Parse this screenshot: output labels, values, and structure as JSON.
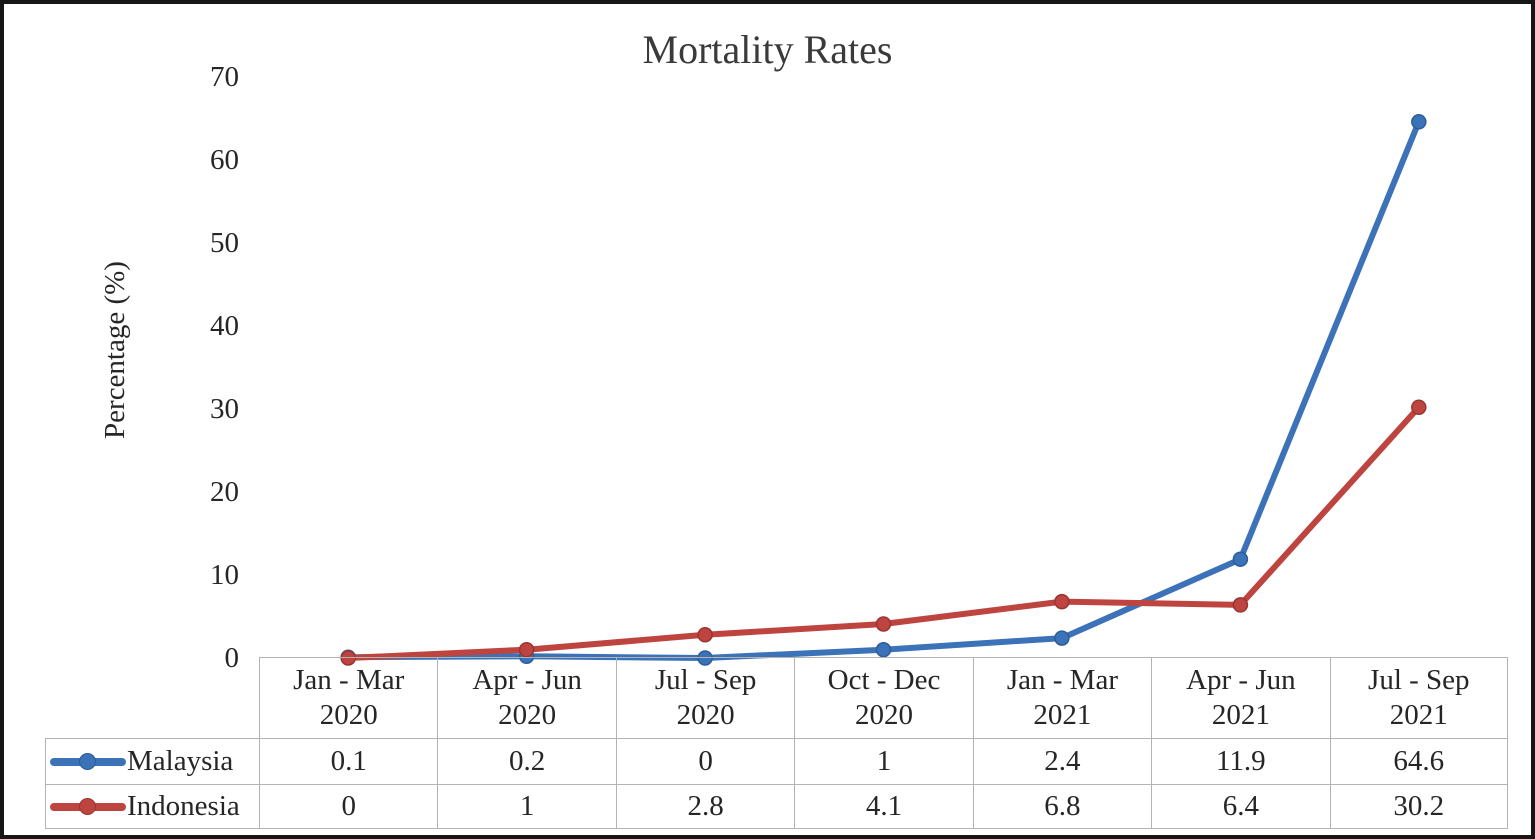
{
  "chart_data": {
    "type": "line",
    "title": "Mortality Rates",
    "xlabel": "",
    "ylabel": "Percentage (%)",
    "categories": [
      "Jan - Mar 2020",
      "Apr - Jun 2020",
      "Jul - Sep 2020",
      "Oct - Dec 2020",
      "Jan - Mar 2021",
      "Apr - Jun 2021",
      "Jul - Sep 2021"
    ],
    "series": [
      {
        "name": "Malaysia",
        "color": "#3b72b8",
        "marker_edge": "#2d5d99",
        "values": [
          0.1,
          0.2,
          0,
          1,
          2.4,
          11.9,
          64.6
        ]
      },
      {
        "name": "Indonesia",
        "color": "#be4440",
        "marker_edge": "#993432",
        "values": [
          0,
          1,
          2.8,
          4.1,
          6.8,
          6.4,
          30.2
        ]
      }
    ],
    "ylim": [
      0,
      70
    ],
    "yticks": [
      0,
      10,
      20,
      30,
      40,
      50,
      60,
      70
    ],
    "grid": false,
    "legend_position": "data-table-left",
    "data_table": true,
    "marker": "circle"
  }
}
